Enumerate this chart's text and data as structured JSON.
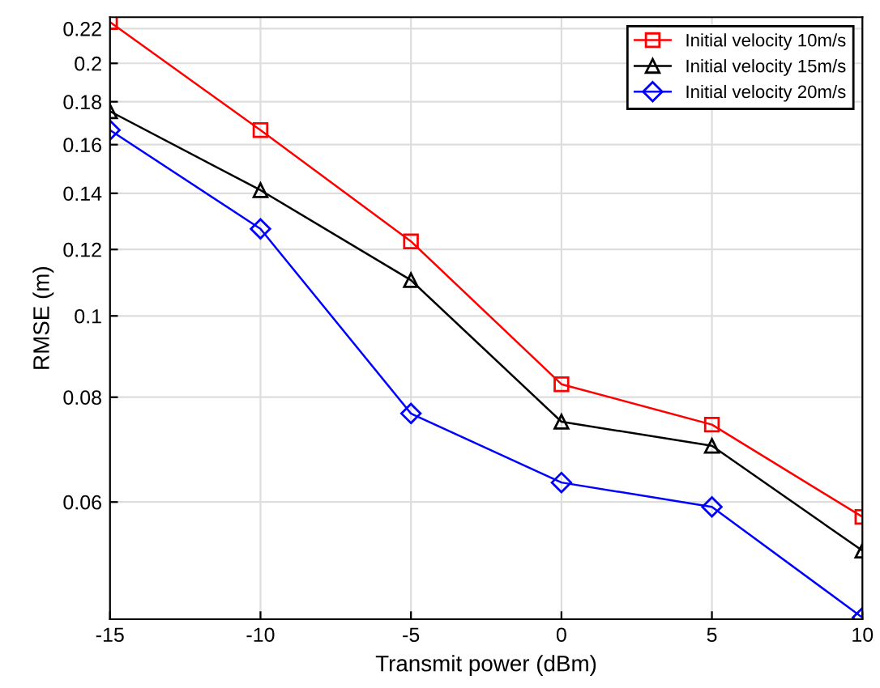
{
  "chart_data": {
    "type": "line",
    "xlabel": "Transmit power (dBm)",
    "ylabel": "RMSE (m)",
    "x": [
      -15,
      -10,
      -5,
      0,
      5,
      10
    ],
    "series": [
      {
        "name": "Initial velocity 10m/s",
        "color": "#ff0000",
        "marker": "square",
        "values": [
          0.224,
          0.1665,
          0.1227,
          0.0829,
          0.0742,
          0.0576
        ]
      },
      {
        "name": "Initial velocity 15m/s",
        "color": "#000000",
        "marker": "triangle",
        "values": [
          0.1753,
          0.1412,
          0.1103,
          0.0748,
          0.07,
          0.0525
        ]
      },
      {
        "name": "Initial velocity 20m/s",
        "color": "#0000ff",
        "marker": "diamond",
        "values": [
          0.1665,
          0.127,
          0.0765,
          0.0633,
          0.0592,
          0.0437
        ]
      }
    ],
    "log": "y",
    "xlim": [
      -15,
      10
    ],
    "xticks": [
      -15,
      -10,
      -5,
      0,
      5,
      10
    ],
    "ylim": [
      0.0435,
      0.227
    ],
    "yticks": [
      0.06,
      0.08,
      0.1,
      0.12,
      0.14,
      0.16,
      0.18,
      0.2,
      0.22
    ],
    "grid": true,
    "legend": "top right",
    "line_style": "solid"
  }
}
